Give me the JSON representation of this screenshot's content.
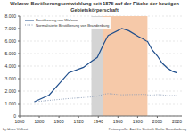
{
  "chart_data": {
    "type": "line",
    "title": "Welzow: Bevölkerungsentwicklung seit 1875 auf der Fläche der heutigen Gebietskörperschaft",
    "x": [
      1875,
      1890,
      1910,
      1925,
      1933,
      1939,
      1946,
      1950,
      1964,
      1971,
      1981,
      1985,
      1989,
      1990,
      1995,
      2000,
      2005,
      2010,
      2015,
      2020
    ],
    "series": [
      {
        "name": "Bevölkerung von Welzow",
        "color": "#1f4e8c",
        "line_style": "solid",
        "values": [
          1140,
          1680,
          3470,
          3900,
          4380,
          4690,
          5860,
          6450,
          7000,
          6830,
          6360,
          6190,
          6000,
          5980,
          5270,
          4820,
          4230,
          3860,
          3600,
          3460
        ]
      },
      {
        "name": "Normalisierte Bevölkerung von Brandenburg",
        "color": "#8a9bb5",
        "line_style": "dotted",
        "values": [
          1140,
          1250,
          1400,
          1480,
          1530,
          1600,
          1750,
          1800,
          1700,
          1720,
          1730,
          1740,
          1720,
          1700,
          1680,
          1720,
          1700,
          1650,
          1640,
          1660
        ]
      }
    ],
    "xlim": [
      1860,
      2025
    ],
    "xticks": [
      1860,
      1880,
      1900,
      1920,
      1940,
      1960,
      1980,
      2000,
      2020
    ],
    "ylim": [
      0,
      8000
    ],
    "yticks": [
      0,
      {
        "value": 1000,
        "label": "1.000"
      },
      {
        "value": 2000,
        "label": "2.000"
      },
      {
        "value": 3000,
        "label": "3.000"
      },
      {
        "value": 4000,
        "label": "4.000"
      },
      {
        "value": 5000,
        "label": "5.000"
      },
      {
        "value": 6000,
        "label": "6.000"
      },
      {
        "value": 7000,
        "label": "7.000"
      },
      {
        "value": 8000,
        "label": "8.000"
      }
    ],
    "grid": true,
    "legend": "upper left",
    "shaded_periods": [
      {
        "from": 1933,
        "to": 1945,
        "color": "#d4d4d4"
      },
      {
        "from": 1945,
        "to": 1990,
        "color": "#f6c9a9"
      }
    ],
    "annotations": [
      "by Hans Völkert",
      "Datenquelle: Amt für Statistik Berlin-Brandenburg"
    ]
  }
}
